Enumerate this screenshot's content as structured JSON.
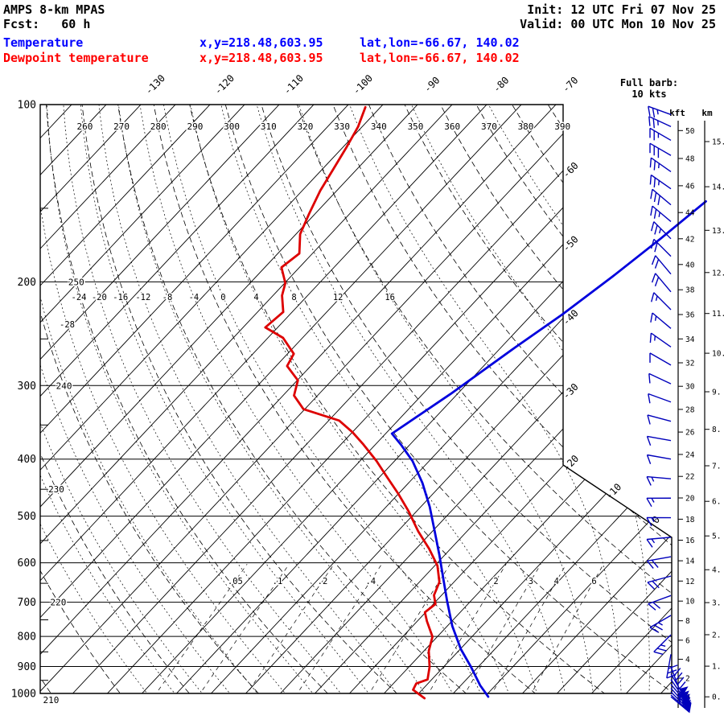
{
  "header": {
    "model": "AMPS 8-km MPAS",
    "fcst": "Fcst:   60 h",
    "init": "Init: 12 UTC Fri 07 Nov 25",
    "valid": "Valid: 00 UTC Mon 10 Nov 25",
    "legend": [
      {
        "label": "Temperature",
        "xy": "x,y=218.48,603.95",
        "latlon": "lat,lon=-66.67, 140.02"
      },
      {
        "label": "Dewpoint temperature",
        "xy": "x,y=218.48,603.95",
        "latlon": "lat,lon=-66.67, 140.02"
      }
    ],
    "barb_note_1": "Full barb:",
    "barb_note_2": "10 kts"
  },
  "colors": {
    "temperature_curve": "#0000dd",
    "dewpoint_curve": "#dd0000",
    "temperature_text": "#0000ff",
    "dewpoint_text": "#ff0000",
    "wind_barbs": "#0000bb",
    "grid": "#000000"
  },
  "chart_data": {
    "type": "skewt-logp",
    "title": "AMPS 8-km MPAS sounding, lat,lon=-66.67, 140.02",
    "pressure_axis": {
      "unit": "hPa",
      "ticks": [
        100,
        200,
        300,
        400,
        500,
        600,
        700,
        800,
        900,
        1000
      ]
    },
    "isotherms": {
      "unit": "C",
      "step_c": 5,
      "top_labels": [
        -130,
        -120,
        -110,
        -100,
        -90,
        -80,
        -70
      ],
      "right_labels": [
        -60,
        -50,
        -40,
        -30,
        -20,
        -10,
        0
      ]
    },
    "dry_adiabats": {
      "unit": "K",
      "step_k": 10,
      "top_labels": [
        260,
        270,
        280,
        290,
        300,
        310,
        320,
        330,
        340,
        350,
        360,
        370,
        380,
        390
      ],
      "left_labels_theta_p": [
        [
          250,
          200
        ],
        [
          240,
          300
        ],
        [
          230,
          450
        ],
        [
          220,
          700
        ],
        [
          210,
          1000
        ]
      ]
    },
    "moist_adiabats": {
      "labels_at_200hpa": [
        -24,
        -20,
        -16,
        -12,
        -8,
        -4,
        0,
        4,
        8,
        12,
        16
      ],
      "left_label": -28
    },
    "mixing_ratio_g_kg": [
      0.05,
      0.1,
      0.2,
      0.4,
      1,
      2,
      3,
      4,
      6
    ],
    "height_axes": {
      "kft": {
        "label": "kft",
        "min": 0,
        "max": 50,
        "step": 2
      },
      "km": {
        "label": "km",
        "min": 0,
        "max": 15,
        "step": 1
      }
    },
    "temperature_profile_p_t": [
      [
        1013,
        0.5
      ],
      [
        969,
        -2.2
      ],
      [
        902,
        -6.0
      ],
      [
        841,
        -9.9
      ],
      [
        768,
        -14.3
      ],
      [
        697,
        -18.4
      ],
      [
        640,
        -21.9
      ],
      [
        583,
        -25.7
      ],
      [
        530,
        -29.7
      ],
      [
        482,
        -33.7
      ],
      [
        439,
        -38.0
      ],
      [
        403,
        -42.4
      ],
      [
        378,
        -46.3
      ],
      [
        362,
        -49.1
      ],
      [
        310,
        -46.0
      ],
      [
        259,
        -43.0
      ],
      [
        227,
        -40.6
      ],
      [
        196,
        -38.5
      ],
      [
        169,
        -36.7
      ],
      [
        146,
        -35.2
      ]
    ],
    "dewpoint_profile_p_t": [
      [
        1019,
        -8.5
      ],
      [
        986,
        -11.3
      ],
      [
        962,
        -11.7
      ],
      [
        947,
        -10.6
      ],
      [
        902,
        -12.0
      ],
      [
        847,
        -14.3
      ],
      [
        801,
        -15.7
      ],
      [
        754,
        -18.6
      ],
      [
        728,
        -20.1
      ],
      [
        705,
        -19.7
      ],
      [
        681,
        -21.1
      ],
      [
        647,
        -22.1
      ],
      [
        607,
        -24.6
      ],
      [
        568,
        -28.1
      ],
      [
        530,
        -32.1
      ],
      [
        491,
        -36.1
      ],
      [
        459,
        -39.9
      ],
      [
        427,
        -44.2
      ],
      [
        403,
        -47.6
      ],
      [
        378,
        -51.7
      ],
      [
        360,
        -55.0
      ],
      [
        344,
        -58.5
      ],
      [
        329,
        -65.2
      ],
      [
        312,
        -68.4
      ],
      [
        294,
        -69.9
      ],
      [
        278,
        -73.4
      ],
      [
        265,
        -74.1
      ],
      [
        249,
        -77.8
      ],
      [
        239,
        -81.8
      ],
      [
        225,
        -81.3
      ],
      [
        211,
        -83.7
      ],
      [
        201,
        -84.9
      ],
      [
        189,
        -87.6
      ],
      [
        179,
        -86.9
      ],
      [
        166,
        -89.4
      ],
      [
        153,
        -90.9
      ],
      [
        140,
        -92.4
      ],
      [
        129,
        -93.4
      ],
      [
        118,
        -94.5
      ],
      [
        109,
        -95.6
      ],
      [
        101,
        -97.2
      ]
    ],
    "wind_barbs_p_dir_kts": [
      [
        104,
        290,
        25
      ],
      [
        109,
        295,
        25
      ],
      [
        115,
        300,
        25
      ],
      [
        122,
        300,
        30
      ],
      [
        130,
        305,
        25
      ],
      [
        139,
        305,
        25
      ],
      [
        148,
        310,
        30
      ],
      [
        158,
        310,
        25
      ],
      [
        169,
        315,
        25
      ],
      [
        181,
        315,
        20
      ],
      [
        194,
        320,
        20
      ],
      [
        208,
        320,
        20
      ],
      [
        223,
        315,
        15
      ],
      [
        240,
        310,
        15
      ],
      [
        258,
        305,
        15
      ],
      [
        277,
        300,
        10
      ],
      [
        298,
        295,
        10
      ],
      [
        320,
        290,
        10
      ],
      [
        345,
        285,
        10
      ],
      [
        372,
        280,
        10
      ],
      [
        400,
        280,
        10
      ],
      [
        432,
        275,
        15
      ],
      [
        466,
        270,
        15
      ],
      [
        503,
        270,
        15
      ],
      [
        543,
        265,
        15
      ],
      [
        586,
        260,
        20
      ],
      [
        632,
        255,
        20
      ],
      [
        682,
        250,
        20
      ],
      [
        737,
        240,
        25
      ],
      [
        795,
        225,
        25
      ],
      [
        858,
        190,
        30
      ],
      [
        900,
        160,
        40
      ],
      [
        926,
        150,
        50
      ],
      [
        947,
        145,
        55
      ],
      [
        965,
        140,
        60
      ],
      [
        980,
        138,
        65
      ],
      [
        994,
        135,
        70
      ],
      [
        1006,
        132,
        72
      ],
      [
        1013,
        130,
        68
      ]
    ]
  }
}
